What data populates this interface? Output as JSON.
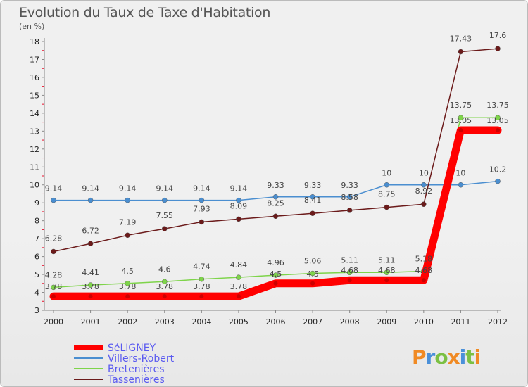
{
  "title": "Evolution du Taux de Taxe d'Habitation",
  "unit": "(en %)",
  "brand": "Proxiti",
  "chart_data": {
    "type": "line",
    "x": [
      2000,
      2001,
      2002,
      2003,
      2004,
      2005,
      2006,
      2007,
      2008,
      2009,
      2010,
      2011,
      2012
    ],
    "ylim": [
      3,
      18
    ],
    "yticks": [
      3,
      4,
      5,
      6,
      7,
      8,
      9,
      10,
      11,
      12,
      13,
      14,
      15,
      16,
      17,
      18
    ],
    "grid": false,
    "legend": "bottom-left",
    "series": [
      {
        "name": "SéLIGNEY",
        "color": "#ff0000",
        "values": [
          3.78,
          3.78,
          3.78,
          3.78,
          3.78,
          3.78,
          4.5,
          4.5,
          4.68,
          4.68,
          4.68,
          13.05,
          13.05
        ],
        "labels": [
          "3.78",
          "3.78",
          "3.78",
          "3.78",
          "3.78",
          "3.78",
          "4.5",
          "4.5",
          "4.68",
          "4.68",
          "4.68",
          "13.05",
          "13.05"
        ]
      },
      {
        "name": "Villers-Robert",
        "color": "#4a8ed0",
        "values": [
          9.14,
          9.14,
          9.14,
          9.14,
          9.14,
          9.14,
          9.33,
          9.33,
          9.33,
          10,
          10,
          10,
          10.2
        ],
        "labels": [
          "9.14",
          "9.14",
          "9.14",
          "9.14",
          "9.14",
          "9.14",
          "9.33",
          "9.33",
          "9.33",
          "10",
          "10",
          "10",
          "10.2"
        ]
      },
      {
        "name": "Bretenières",
        "color": "#7ed44a",
        "values": [
          4.28,
          4.41,
          4.5,
          4.6,
          4.74,
          4.84,
          4.96,
          5.06,
          5.11,
          5.11,
          5.18,
          13.75,
          13.75
        ],
        "labels": [
          "4.28",
          "4.41",
          "4.5",
          "4.6",
          "4.74",
          "4.84",
          "4.96",
          "5.06",
          "5.11",
          "5.11",
          "5.18",
          "13.75",
          "13.75"
        ]
      },
      {
        "name": "Tassenières",
        "color": "#6b1a1a",
        "values": [
          6.28,
          6.72,
          7.19,
          7.55,
          7.93,
          8.09,
          8.25,
          8.41,
          8.58,
          8.75,
          8.92,
          17.43,
          17.6
        ],
        "labels": [
          "6.28",
          "6.72",
          "7.19",
          "7.55",
          "7.93",
          "8.09",
          "8.25",
          "8.41",
          "8.58",
          "8.75",
          "8.92",
          "17.43",
          "17.6"
        ]
      }
    ]
  }
}
